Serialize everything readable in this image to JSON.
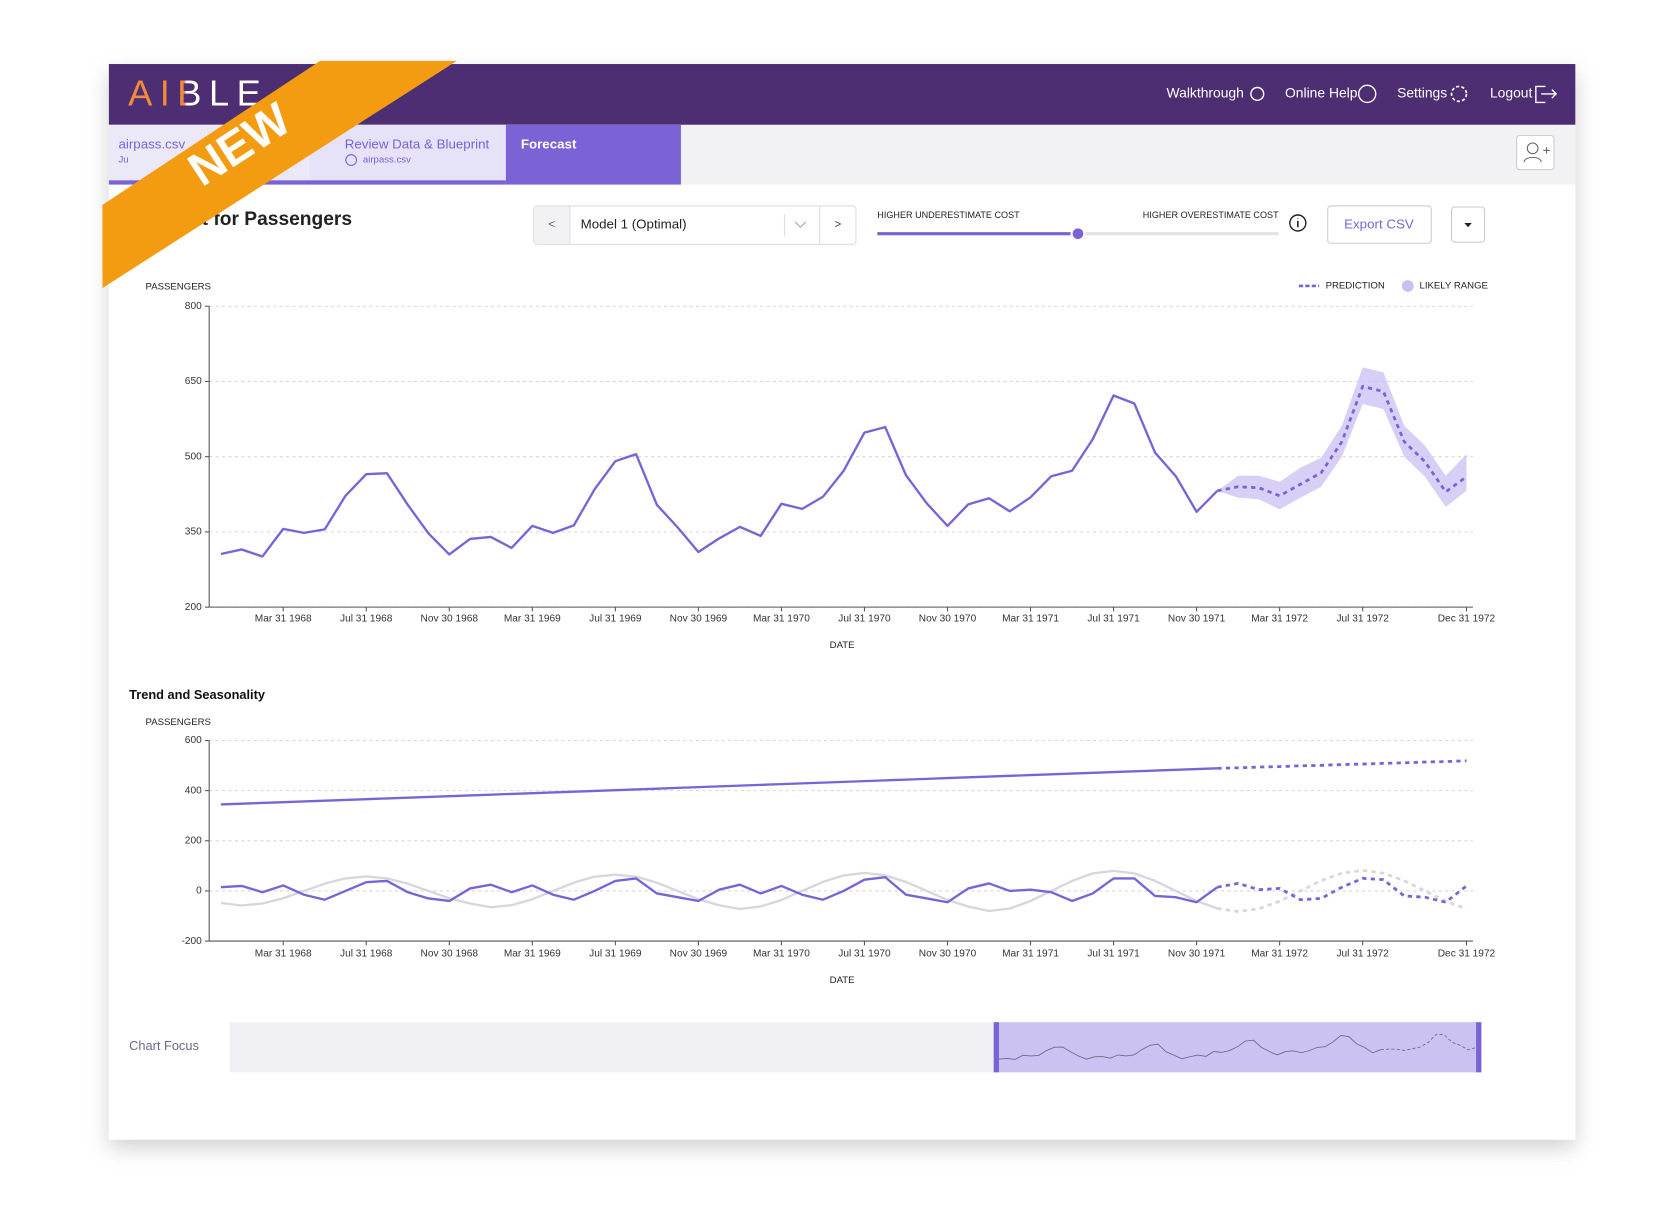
{
  "banner": "NEW",
  "header": {
    "logo": "AIBLE",
    "nav": [
      "Walkthrough",
      "Online Help",
      "Settings",
      "Logout"
    ]
  },
  "tabs": [
    {
      "title": "airpass.csv",
      "subtitle": "Ju"
    },
    {
      "title": "Review Data & Blueprint",
      "subtitle": "airpass.csv"
    },
    {
      "title": "Forecast"
    }
  ],
  "controls": {
    "prev": "<",
    "model": "Model 1 (Optimal)",
    "next": ">",
    "slider_left": "HIGHER UNDERESTIMATE COST",
    "slider_right": "HIGHER OVERESTIMATE COST",
    "export": "Export CSV"
  },
  "chart_focus": {
    "label": "Chart Focus"
  },
  "chart_data": [
    {
      "type": "line",
      "title": "Forecast for Passengers",
      "y_label": "PASSENGERS",
      "x_label": "DATE",
      "x": [
        "Dec 31 1967",
        "Jan 31 1968",
        "Feb 29 1968",
        "Mar 31 1968",
        "Apr 30 1968",
        "May 31 1968",
        "Jun 30 1968",
        "Jul 31 1968",
        "Aug 31 1968",
        "Sep 30 1968",
        "Oct 31 1968",
        "Nov 30 1968",
        "Dec 31 1968",
        "Jan 31 1969",
        "Feb 28 1969",
        "Mar 31 1969",
        "Apr 30 1969",
        "May 31 1969",
        "Jun 30 1969",
        "Jul 31 1969",
        "Aug 31 1969",
        "Sep 30 1969",
        "Oct 31 1969",
        "Nov 30 1969",
        "Dec 31 1969",
        "Jan 31 1970",
        "Feb 28 1970",
        "Mar 31 1970",
        "Apr 30 1970",
        "May 31 1970",
        "Jun 30 1970",
        "Jul 31 1970",
        "Aug 31 1970",
        "Sep 30 1970",
        "Oct 31 1970",
        "Nov 30 1970",
        "Dec 31 1970",
        "Jan 31 1971",
        "Feb 28 1971",
        "Mar 31 1971",
        "Apr 30 1971",
        "May 31 1971",
        "Jun 30 1971",
        "Jul 31 1971",
        "Aug 31 1971",
        "Sep 30 1971",
        "Oct 31 1971",
        "Nov 30 1971",
        "Dec 31 1971",
        "Jan 31 1972",
        "Feb 29 1972",
        "Mar 31 1972",
        "Apr 30 1972",
        "May 31 1972",
        "Jun 30 1972",
        "Jul 31 1972",
        "Aug 31 1972",
        "Sep 30 1972",
        "Oct 31 1972",
        "Nov 30 1972",
        "Dec 31 1972"
      ],
      "xticks": [
        "Mar 31 1968",
        "Jul 31 1968",
        "Nov 30 1968",
        "Mar 31 1969",
        "Jul 31 1969",
        "Nov 30 1969",
        "Mar 31 1970",
        "Jul 31 1970",
        "Nov 30 1970",
        "Mar 31 1971",
        "Jul 31 1971",
        "Nov 30 1971",
        "Mar 31 1972",
        "Jul 31 1972",
        "Dec 31 1972"
      ],
      "ylim": [
        200,
        800
      ],
      "yticks": [
        200,
        350,
        500,
        650,
        800
      ],
      "grid": true,
      "legend": "top-right",
      "series": [
        {
          "color": "#7b63d6",
          "dash": false,
          "values": [
            306,
            315,
            301,
            356,
            348,
            355,
            422,
            465,
            467,
            404,
            347,
            305,
            336,
            340,
            318,
            362,
            348,
            363,
            435,
            491,
            505,
            404,
            359,
            310,
            337,
            360,
            342,
            406,
            396,
            420,
            472,
            548,
            559,
            463,
            407,
            362,
            405,
            417,
            391,
            419,
            461,
            472,
            535,
            622,
            606,
            508,
            461,
            390,
            432,
            null,
            null,
            null,
            null,
            null,
            null,
            null,
            null,
            null,
            null,
            null,
            null
          ]
        },
        {
          "name": "PREDICTION",
          "color": "#7b63d6",
          "dash": true,
          "values": [
            null,
            null,
            null,
            null,
            null,
            null,
            null,
            null,
            null,
            null,
            null,
            null,
            null,
            null,
            null,
            null,
            null,
            null,
            null,
            null,
            null,
            null,
            null,
            null,
            null,
            null,
            null,
            null,
            null,
            null,
            null,
            null,
            null,
            null,
            null,
            null,
            null,
            null,
            null,
            null,
            null,
            null,
            null,
            null,
            null,
            null,
            null,
            null,
            432,
            440,
            438,
            422,
            445,
            468,
            530,
            640,
            630,
            530,
            490,
            430,
            460
          ]
        }
      ],
      "range": {
        "name": "LIKELY RANGE",
        "color": "#c9bff2",
        "lower": [
          null,
          null,
          null,
          null,
          null,
          null,
          null,
          null,
          null,
          null,
          null,
          null,
          null,
          null,
          null,
          null,
          null,
          null,
          null,
          null,
          null,
          null,
          null,
          null,
          null,
          null,
          null,
          null,
          null,
          null,
          null,
          null,
          null,
          null,
          null,
          null,
          null,
          null,
          null,
          null,
          null,
          null,
          null,
          null,
          null,
          null,
          null,
          null,
          432,
          418,
          415,
          395,
          418,
          440,
          500,
          605,
          595,
          500,
          460,
          400,
          432
        ],
        "upper": [
          null,
          null,
          null,
          null,
          null,
          null,
          null,
          null,
          null,
          null,
          null,
          null,
          null,
          null,
          null,
          null,
          null,
          null,
          null,
          null,
          null,
          null,
          null,
          null,
          null,
          null,
          null,
          null,
          null,
          null,
          null,
          null,
          null,
          null,
          null,
          null,
          null,
          null,
          null,
          null,
          null,
          null,
          null,
          null,
          null,
          null,
          null,
          null,
          432,
          462,
          462,
          450,
          478,
          498,
          562,
          678,
          668,
          562,
          522,
          462,
          505
        ]
      }
    },
    {
      "type": "line",
      "title": "Trend and Seasonality",
      "y_label": "PASSENGERS",
      "x_label": "DATE",
      "x": [
        "Dec 31 1967",
        "Jan 31 1968",
        "Feb 29 1968",
        "Mar 31 1968",
        "Apr 30 1968",
        "May 31 1968",
        "Jun 30 1968",
        "Jul 31 1968",
        "Aug 31 1968",
        "Sep 30 1968",
        "Oct 31 1968",
        "Nov 30 1968",
        "Dec 31 1968",
        "Jan 31 1969",
        "Feb 28 1969",
        "Mar 31 1969",
        "Apr 30 1969",
        "May 31 1969",
        "Jun 30 1969",
        "Jul 31 1969",
        "Aug 31 1969",
        "Sep 30 1969",
        "Oct 31 1969",
        "Nov 30 1969",
        "Dec 31 1969",
        "Jan 31 1970",
        "Feb 28 1970",
        "Mar 31 1970",
        "Apr 30 1970",
        "May 31 1970",
        "Jun 30 1970",
        "Jul 31 1970",
        "Aug 31 1970",
        "Sep 30 1970",
        "Oct 31 1970",
        "Nov 30 1970",
        "Dec 31 1970",
        "Jan 31 1971",
        "Feb 28 1971",
        "Mar 31 1971",
        "Apr 30 1971",
        "May 31 1971",
        "Jun 30 1971",
        "Jul 31 1971",
        "Aug 31 1971",
        "Sep 30 1971",
        "Oct 31 1971",
        "Nov 30 1971",
        "Dec 31 1971",
        "Jan 31 1972",
        "Feb 29 1972",
        "Mar 31 1972",
        "Apr 30 1972",
        "May 31 1972",
        "Jun 30 1972",
        "Jul 31 1972",
        "Aug 31 1972",
        "Sep 30 1972",
        "Oct 31 1972",
        "Nov 30 1972",
        "Dec 31 1972"
      ],
      "xticks": [
        "Mar 31 1968",
        "Jul 31 1968",
        "Nov 30 1968",
        "Mar 31 1969",
        "Jul 31 1969",
        "Nov 30 1969",
        "Mar 31 1970",
        "Jul 31 1970",
        "Nov 30 1970",
        "Mar 31 1971",
        "Jul 31 1971",
        "Nov 30 1971",
        "Mar 31 1972",
        "Jul 31 1972",
        "Dec 31 1972"
      ],
      "ylim": [
        -200,
        600
      ],
      "yticks": [
        -200,
        0,
        200,
        400,
        600
      ],
      "grid": true,
      "series": [
        {
          "color": "#d6d6de",
          "dash": false,
          "values": [
            -48,
            -58,
            -50,
            -29,
            0,
            29,
            50,
            58,
            50,
            29,
            0,
            -29,
            -50,
            -65,
            -57,
            -33,
            0,
            33,
            57,
            65,
            57,
            33,
            0,
            -33,
            -57,
            -72,
            -62,
            -36,
            0,
            36,
            62,
            72,
            62,
            36,
            0,
            -36,
            -62,
            -80,
            -70,
            -40,
            0,
            40,
            70,
            80,
            70,
            40,
            0,
            -40,
            -70,
            null,
            null,
            null,
            null,
            null,
            null,
            null,
            null,
            null,
            null,
            null,
            null
          ]
        },
        {
          "color": "#d6d6de",
          "dash": true,
          "values": [
            null,
            null,
            null,
            null,
            null,
            null,
            null,
            null,
            null,
            null,
            null,
            null,
            null,
            null,
            null,
            null,
            null,
            null,
            null,
            null,
            null,
            null,
            null,
            null,
            null,
            null,
            null,
            null,
            null,
            null,
            null,
            null,
            null,
            null,
            null,
            null,
            null,
            null,
            null,
            null,
            null,
            null,
            null,
            null,
            null,
            null,
            null,
            null,
            -70,
            -82,
            -71,
            -41,
            0,
            41,
            71,
            82,
            71,
            41,
            0,
            -41,
            -71
          ]
        },
        {
          "color": "#7b63d6",
          "dash": false,
          "values": [
            345,
            348,
            351,
            354,
            357,
            360,
            363,
            366,
            369,
            372,
            375,
            378,
            381,
            384,
            387,
            390,
            393,
            396,
            399,
            402,
            405,
            408,
            411,
            414,
            417,
            420,
            423,
            426,
            429,
            432,
            435,
            438,
            441,
            444,
            447,
            450,
            453,
            456,
            459,
            462,
            465,
            468,
            471,
            474,
            477,
            480,
            483,
            486,
            489,
            null,
            null,
            null,
            null,
            null,
            null,
            null,
            null,
            null,
            null,
            null,
            null
          ]
        },
        {
          "color": "#7b63d6",
          "dash": true,
          "values": [
            null,
            null,
            null,
            null,
            null,
            null,
            null,
            null,
            null,
            null,
            null,
            null,
            null,
            null,
            null,
            null,
            null,
            null,
            null,
            null,
            null,
            null,
            null,
            null,
            null,
            null,
            null,
            null,
            null,
            null,
            null,
            null,
            null,
            null,
            null,
            null,
            null,
            null,
            null,
            null,
            null,
            null,
            null,
            null,
            null,
            null,
            null,
            null,
            489,
            491,
            494,
            496,
            499,
            501,
            504,
            506,
            509,
            511,
            514,
            516,
            519
          ]
        },
        {
          "color": "#7b63d6",
          "dash": false,
          "values": [
            15,
            20,
            -5,
            22,
            -15,
            -35,
            0,
            35,
            40,
            -5,
            -30,
            -40,
            10,
            25,
            -5,
            22,
            -15,
            -35,
            0,
            40,
            50,
            -10,
            -25,
            -40,
            5,
            25,
            -10,
            20,
            -15,
            -35,
            0,
            45,
            55,
            -15,
            -30,
            -45,
            10,
            30,
            0,
            5,
            -5,
            -40,
            -10,
            50,
            50,
            -20,
            -25,
            -45,
            15,
            null,
            null,
            null,
            null,
            null,
            null,
            null,
            null,
            null,
            null,
            null,
            null
          ]
        },
        {
          "color": "#7b63d6",
          "dash": true,
          "values": [
            null,
            null,
            null,
            null,
            null,
            null,
            null,
            null,
            null,
            null,
            null,
            null,
            null,
            null,
            null,
            null,
            null,
            null,
            null,
            null,
            null,
            null,
            null,
            null,
            null,
            null,
            null,
            null,
            null,
            null,
            null,
            null,
            null,
            null,
            null,
            null,
            null,
            null,
            null,
            null,
            null,
            null,
            null,
            null,
            null,
            null,
            null,
            null,
            15,
            30,
            5,
            10,
            -35,
            -30,
            15,
            50,
            45,
            -20,
            -25,
            -45,
            20
          ]
        }
      ]
    }
  ]
}
